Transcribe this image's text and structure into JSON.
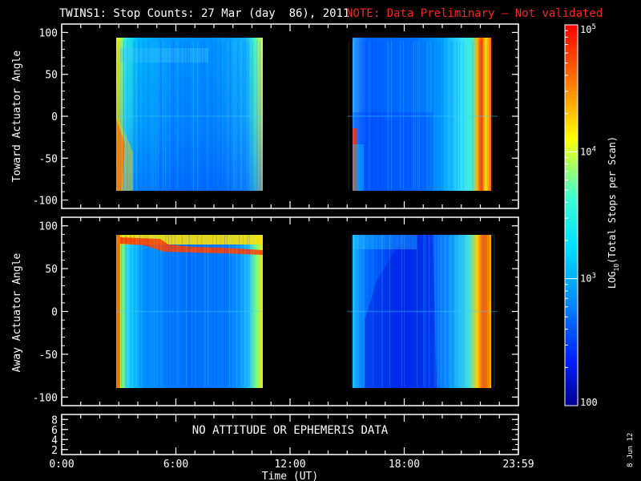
{
  "header": {
    "title": "TWINS1: Stop Counts: 27 Mar (day  86), 2011",
    "note": "NOTE: Data Preliminary – Not validated",
    "note_color": "#ff2020"
  },
  "footer": {
    "datestamp": "8 Jun 12",
    "no_data_message": "NO ATTITUDE OR EPHEMERIS DATA"
  },
  "chart_data": [
    {
      "type": "heatmap",
      "ylabel": "Toward Actuator Angle",
      "xlim": [
        0,
        24
      ],
      "ylim": [
        -110,
        110
      ],
      "yticks": [
        100,
        50,
        0,
        -50,
        -100
      ],
      "data_y_range": [
        -88,
        90
      ],
      "data_blocks": [
        {
          "x_start": 2.9,
          "x_end": 10.5
        },
        {
          "x_start": 15.0,
          "x_end": 22.9
        }
      ]
    },
    {
      "type": "heatmap",
      "ylabel": "Away Actuator Angle",
      "xlim": [
        0,
        24
      ],
      "ylim": [
        -110,
        110
      ],
      "yticks": [
        100,
        50,
        0,
        -50,
        -100
      ],
      "data_y_range": [
        -88,
        90
      ],
      "data_blocks": [
        {
          "x_start": 2.9,
          "x_end": 10.5
        },
        {
          "x_start": 15.0,
          "x_end": 22.9
        }
      ]
    },
    {
      "type": "line",
      "ylim": [
        1,
        9
      ],
      "yticks": [
        8,
        6,
        4,
        2
      ],
      "series": []
    }
  ],
  "x_axis": {
    "label": "Time (UT)",
    "ticks": [
      {
        "value": 0,
        "label": "0:00"
      },
      {
        "value": 6,
        "label": "6:00"
      },
      {
        "value": 12,
        "label": "12:00"
      },
      {
        "value": 18,
        "label": "18:00"
      },
      {
        "value": 24,
        "label": "23:59"
      }
    ]
  },
  "colorbar": {
    "label_prefix": "LOG",
    "label_sub": "10",
    "label_suffix": "(Total Stops per Scan)",
    "scale": "log",
    "range": [
      100,
      100000
    ],
    "ticks": [
      {
        "value": 100000,
        "base": "10",
        "exp": "5"
      },
      {
        "value": 10000,
        "base": "10",
        "exp": "4"
      },
      {
        "value": 1000,
        "base": "10",
        "exp": "3"
      },
      {
        "value": 100,
        "base": "100",
        "exp": ""
      }
    ],
    "colors": [
      "#000090",
      "#0020ff",
      "#0090ff",
      "#00e0ff",
      "#40ffd0",
      "#ffff00",
      "#ff8000",
      "#ff0000",
      "#ff0000"
    ]
  }
}
